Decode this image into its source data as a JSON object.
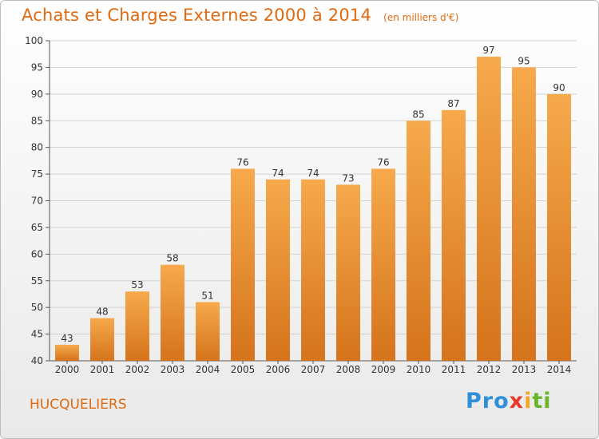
{
  "header": {
    "title": "Achats et Charges Externes 2000 à 2014",
    "subtitle": "(en milliers d'€)"
  },
  "footer": {
    "commune": "HUCQUELIERS",
    "logo": {
      "p1": "Pro",
      "p2": "x",
      "p3": "i",
      "p4": "ti"
    }
  },
  "colors": {
    "bar_light": "#f7a94c",
    "bar_dark": "#d4731b",
    "title": "#e06a10"
  },
  "chart_data": {
    "type": "bar",
    "title": "Achats et Charges Externes 2000 à 2014",
    "subtitle": "(en milliers d'€)",
    "xlabel": "",
    "ylabel": "",
    "categories": [
      "2000",
      "2001",
      "2002",
      "2003",
      "2004",
      "2005",
      "2006",
      "2007",
      "2008",
      "2009",
      "2010",
      "2011",
      "2012",
      "2013",
      "2014"
    ],
    "values": [
      43,
      48,
      53,
      58,
      51,
      76,
      74,
      74,
      73,
      76,
      85,
      87,
      97,
      95,
      90
    ],
    "ylim": [
      40,
      100
    ],
    "yticks": [
      40,
      45,
      50,
      55,
      60,
      65,
      70,
      75,
      80,
      85,
      90,
      95,
      100
    ],
    "grid": true,
    "data_labels": true
  }
}
